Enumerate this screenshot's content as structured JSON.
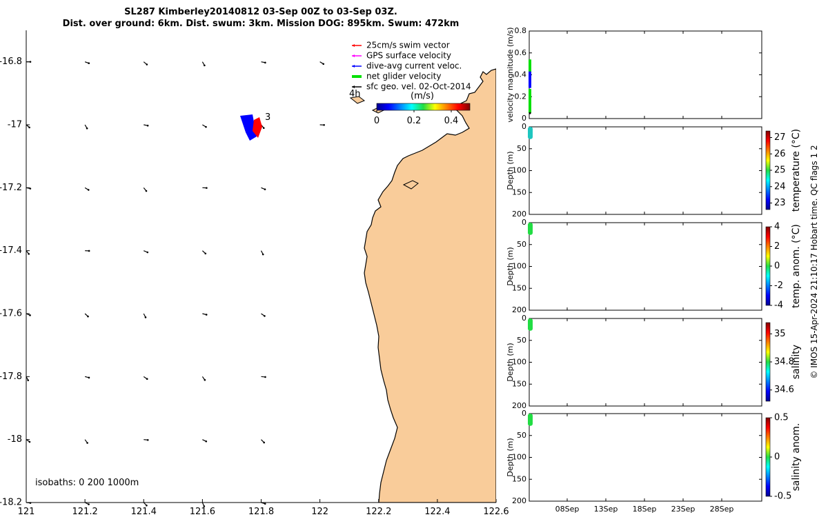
{
  "title": {
    "line1": "SL287 Kimberley20140812 03-Sep 00Z to 03-Sep 03Z.",
    "line2": "Dist. over ground: 6km. Dist. swum: 3km. Mission DOG: 895km. Swum: 472km"
  },
  "colors": {
    "land": "#f9cc9a",
    "swim_vector": "#ff0000",
    "gps_velocity": "#ff00ff",
    "dive_avg": "#0000ff",
    "net_glider": "#00e000",
    "sfc_geo": "#000000"
  },
  "chart_data": [
    {
      "type": "scatter",
      "id": "map",
      "xlim": [
        121,
        122.6
      ],
      "ylim": [
        -18.2,
        -16.7
      ],
      "xticks": [
        "121",
        "121.2",
        "121.4",
        "121.6",
        "121.8",
        "122",
        "122.2",
        "122.4",
        "122.6"
      ],
      "yticks": [
        "-16.8",
        "-17",
        "-17.2",
        "-17.4",
        "-17.6",
        "-17.8",
        "-18",
        "-18.2"
      ],
      "legend": [
        {
          "label": "25cm/s swim vector",
          "color": "#ff0000"
        },
        {
          "label": "GPS surface velocity",
          "color": "#ff00ff"
        },
        {
          "label": "dive-avg current veloc.",
          "color": "#0000ff"
        },
        {
          "label": "net glider velocity",
          "color": "#00e000"
        },
        {
          "label": "sfc geo. vel. 02-Oct-2014",
          "color": "#000000"
        }
      ],
      "legend_position": "top-right",
      "colorbar": {
        "label": "(m/s)",
        "ticks": [
          "0",
          "0.2",
          "0.4"
        ],
        "range": [
          0,
          0.5
        ]
      },
      "annotations": [
        "4h",
        "3"
      ],
      "isobaths_label": "isobaths: 0   200  1000m",
      "glider_position": {
        "lon": 121.75,
        "lat": -16.97
      }
    },
    {
      "type": "line",
      "id": "velocity",
      "ylabel": "velocity magnitude (m/s)",
      "yticks": [
        "0",
        "0.2",
        "0.4",
        "0.6",
        "0.8"
      ],
      "ylim": [
        0,
        0.8
      ]
    },
    {
      "type": "scatter",
      "id": "temperature",
      "ylabel": "Depth (m)",
      "yticks": [
        "0",
        "50",
        "100",
        "150",
        "200"
      ],
      "ylim": [
        0,
        200
      ],
      "colorbar_label": "temperature (°C)",
      "colorbar_ticks": [
        "27",
        "26",
        "25",
        "24",
        "23"
      ]
    },
    {
      "type": "scatter",
      "id": "temp_anom",
      "ylabel": "Depth (m)",
      "yticks": [
        "0",
        "50",
        "100",
        "150",
        "200"
      ],
      "ylim": [
        0,
        200
      ],
      "colorbar_label": "temp. anom. (°C)",
      "colorbar_ticks": [
        "4",
        "2",
        "0",
        "-2",
        "-4"
      ]
    },
    {
      "type": "scatter",
      "id": "salinity",
      "ylabel": "Depth (m)",
      "yticks": [
        "0",
        "50",
        "100",
        "150",
        "200"
      ],
      "ylim": [
        0,
        200
      ],
      "colorbar_label": "salinity",
      "colorbar_ticks": [
        "35",
        "34.8",
        "34.6"
      ]
    },
    {
      "type": "scatter",
      "id": "salinity_anom",
      "ylabel": "Depth (m)",
      "yticks": [
        "0",
        "50",
        "100",
        "150",
        "200"
      ],
      "ylim": [
        0,
        200
      ],
      "colorbar_label": "salinity anom.",
      "colorbar_ticks": [
        "0.5",
        "0",
        "-0.5"
      ],
      "xticks": [
        "08Sep",
        "13Sep",
        "18Sep",
        "23Sep",
        "28Sep"
      ]
    }
  ],
  "side_note": "© IMOS 15-Apr-2024 21:10:17 Hobart time. QC flags 1  2"
}
